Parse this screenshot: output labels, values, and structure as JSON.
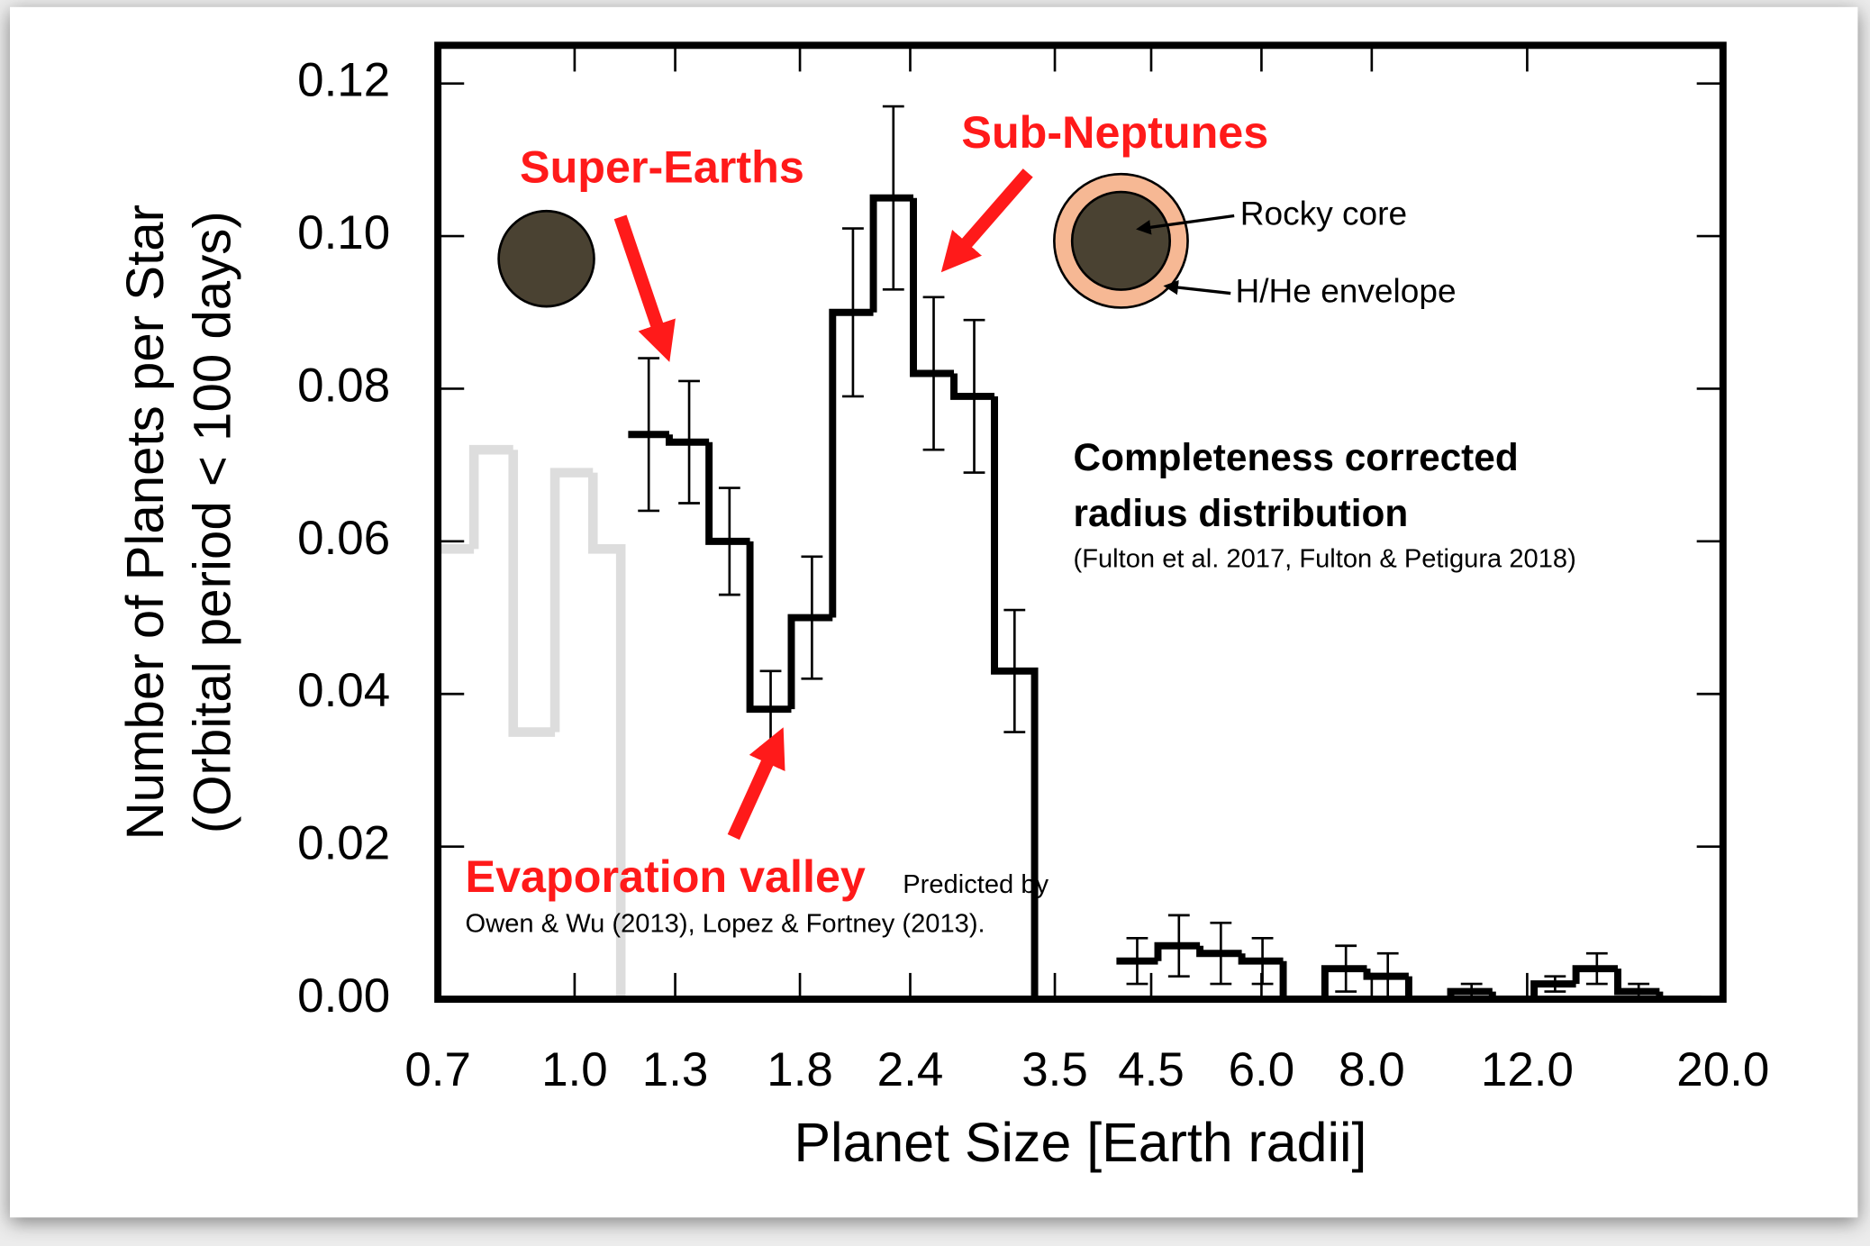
{
  "chart_data": {
    "type": "histogram",
    "x_label": "Planet Size [Earth radii]",
    "y_label": [
      "Number of Planets per Star",
      "(Orbital period < 100 days)"
    ],
    "xscale": "log",
    "xlim": [
      0.7,
      20
    ],
    "ylim": [
      0,
      0.125
    ],
    "xticks": [
      0.7,
      {
        "value": 1,
        "label": "1.0"
      },
      1.3,
      1.8,
      2.4,
      3.5,
      4.5,
      {
        "value": 6,
        "label": "6.0"
      },
      {
        "value": 8,
        "label": "8.0"
      },
      {
        "value": 12,
        "label": "12.0"
      },
      {
        "value": 20,
        "label": "20.0"
      }
    ],
    "yticks": [
      {
        "value": 0,
        "label": "0.00"
      },
      0.02,
      0.04,
      0.06,
      0.08,
      {
        "value": 0.1,
        "label": "0.10"
      },
      0.12
    ],
    "series": [
      {
        "color": "#dddddd",
        "bins": [
          0.7,
          0.769,
          0.852,
          0.95,
          1.049,
          1.128
        ],
        "values": [
          0.059,
          0.072,
          0.035,
          0.069,
          0.059
        ]
      },
      {
        "color": "#000000",
        "bins": [
          1.15,
          1.28,
          1.42,
          1.58,
          1.76,
          1.96,
          2.18,
          2.42,
          2.69,
          2.99,
          3.32
        ],
        "values": [
          0.074,
          0.073,
          0.06,
          0.038,
          0.05,
          0.09,
          0.105,
          0.082,
          0.079,
          0.043
        ],
        "errors": [
          0.01,
          0.008,
          0.007,
          0.005,
          0.008,
          0.011,
          0.012,
          0.01,
          0.01,
          0.008
        ]
      },
      {
        "color": "#000000",
        "bins": [
          4.11,
          4.58,
          5.11,
          5.7,
          6.35,
          7.08,
          7.9,
          8.81,
          9.83,
          10.96,
          12.22,
          13.63,
          15.2,
          16.95,
          18.9
        ],
        "values": [
          0.005,
          0.007,
          0.006,
          0.005,
          0,
          0.004,
          0.003,
          0,
          0.001,
          0,
          0.002,
          0.004,
          0.001,
          0
        ],
        "errors": [
          0.003,
          0.004,
          0.004,
          0.003,
          0,
          0.003,
          0.003,
          0,
          0.001,
          0,
          0.001,
          0.002,
          0.001,
          0
        ]
      }
    ],
    "annotations": {
      "super_earths": "Super-Earths",
      "sub_neptunes": "Sub-Neptunes",
      "valley": "Evaporation valley",
      "predicted": "Predicted by",
      "predicted_refs": "Owen & Wu (2013), Lopez & Fortney (2013).",
      "rocky_core": "Rocky core",
      "envelope": "H/He envelope",
      "completeness_1": "Completeness corrected",
      "completeness_2": "radius distribution",
      "citation": "(Fulton et al. 2017, Fulton & Petigura 2018)"
    }
  }
}
